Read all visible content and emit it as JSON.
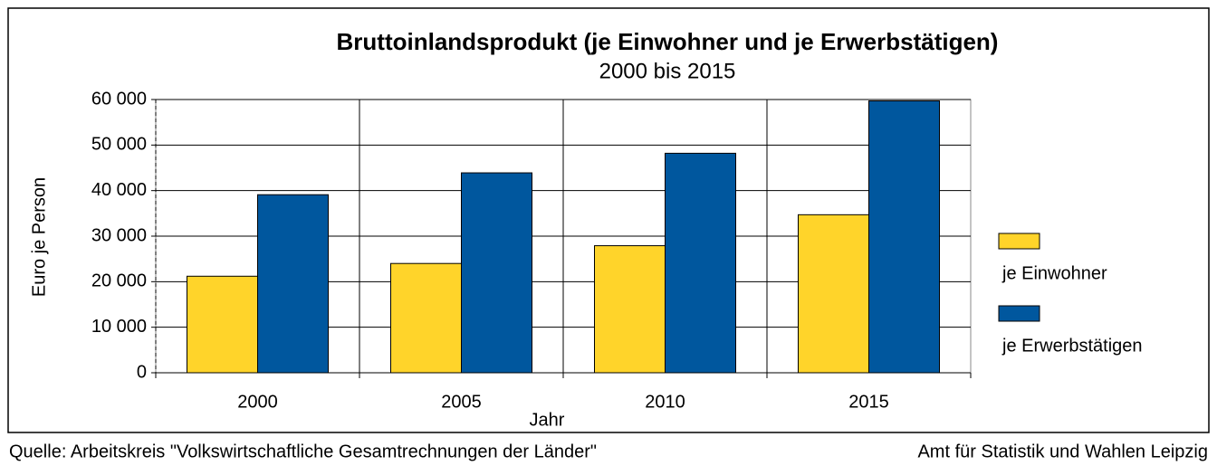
{
  "chart_data": {
    "type": "bar",
    "title": "Bruttoinlandsprodukt (je Einwohner und je Erwerbstätigen)",
    "subtitle": "2000 bis 2015",
    "x_label": "Jahr",
    "y_label": "Euro je Person",
    "categories": [
      "2000",
      "2005",
      "2010",
      "2015"
    ],
    "series": [
      {
        "name": "je Einwohner",
        "color": "#ffd42a",
        "values": [
          21200,
          24000,
          27900,
          34700
        ]
      },
      {
        "name": "je Erwerbstätigen",
        "color": "#00579e",
        "values": [
          39100,
          43900,
          48200,
          59700
        ]
      }
    ],
    "ylim": [
      0,
      60000
    ],
    "yticks": [
      0,
      {
        "value": 10000,
        "label": "10 000"
      },
      {
        "value": 20000,
        "label": "20 000"
      },
      {
        "value": 30000,
        "label": "30 000"
      },
      {
        "value": 40000,
        "label": "40 000"
      },
      {
        "value": 50000,
        "label": "50 000"
      },
      {
        "value": 60000,
        "label": "60 000"
      }
    ],
    "grid": true,
    "legend": "right",
    "source": "Quelle: Arbeitskreis \"Volkswirtschaftliche Gesamtrechnungen der Länder\"",
    "publisher": "Amt für Statistik und Wahlen Leipzig"
  }
}
